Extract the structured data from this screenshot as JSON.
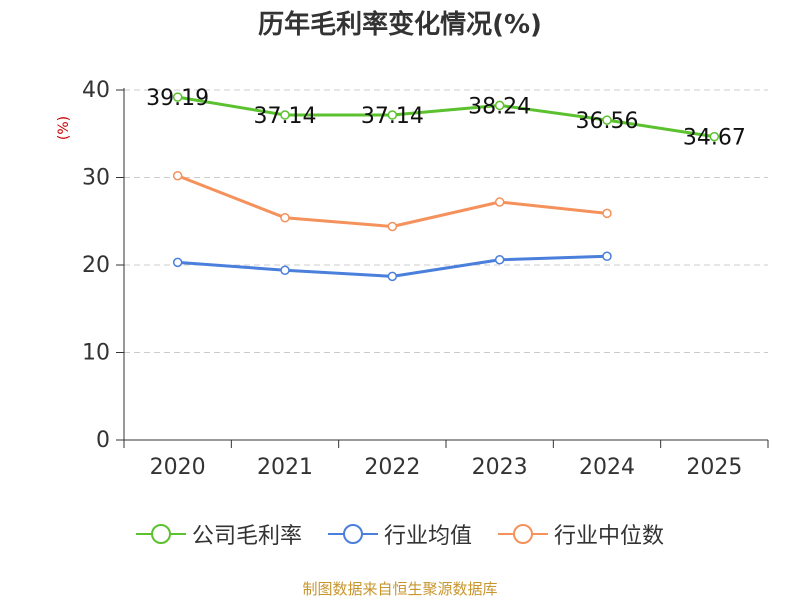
{
  "chart_data": {
    "type": "line",
    "title": "历年毛利率变化情况(%)",
    "ylabel": "(%)",
    "xlabel": "",
    "categories": [
      "2020",
      "2021",
      "2022",
      "2023",
      "2024",
      "2025"
    ],
    "ylim": [
      0,
      40
    ],
    "yticks": [
      0,
      10,
      20,
      30,
      40
    ],
    "grid": true,
    "legend_position": "bottom",
    "series": [
      {
        "name": "公司毛利率",
        "color": "#5cc12e",
        "values": [
          39.19,
          37.14,
          37.14,
          38.24,
          36.56,
          34.67
        ],
        "labels": [
          "39.19",
          "37.14",
          "37.14",
          "38.24",
          "36.56",
          "34.67"
        ]
      },
      {
        "name": "行业均值",
        "color": "#4a7fdb",
        "values": [
          20.3,
          19.4,
          18.7,
          20.6,
          21.0,
          null
        ]
      },
      {
        "name": "行业中位数",
        "color": "#f5915b",
        "values": [
          30.2,
          25.4,
          24.4,
          27.2,
          25.9,
          null
        ]
      }
    ]
  },
  "source": "制图数据来自恒生聚源数据库"
}
